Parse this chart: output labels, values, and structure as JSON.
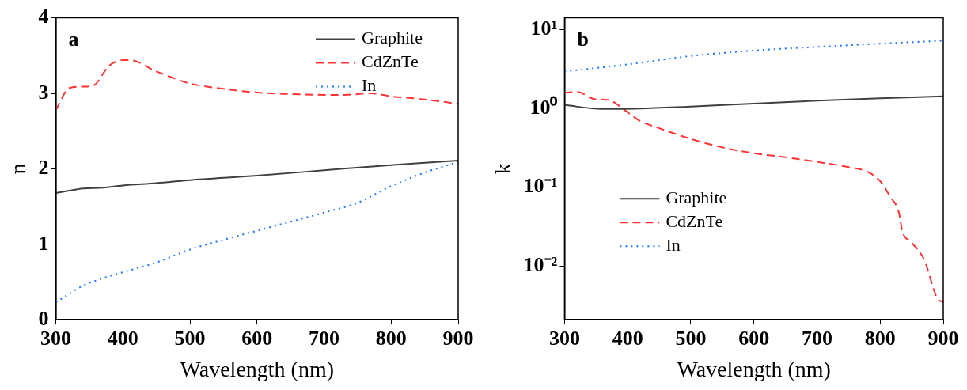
{
  "chart_data": [
    {
      "type": "line",
      "xlabel": "Wavelength (nm)",
      "ylabel": "n",
      "annotations": [
        "a"
      ],
      "xlim": [
        300,
        900
      ],
      "xticks": [
        300,
        400,
        500,
        600,
        700,
        800,
        900
      ],
      "ylim": [
        0,
        4
      ],
      "yticks": [
        0,
        1,
        2,
        3,
        4
      ],
      "legend": "top right",
      "grid": false,
      "series": [
        {
          "name": "Graphite",
          "color": "#404040",
          "line_style": "solid",
          "x": [
            300,
            320,
            340,
            370,
            400,
            450,
            500,
            600,
            700,
            800,
            900
          ],
          "values": [
            1.68,
            1.71,
            1.74,
            1.75,
            1.78,
            1.81,
            1.85,
            1.91,
            1.98,
            2.05,
            2.11
          ]
        },
        {
          "name": "CdZnTe",
          "color": "#ff3333",
          "line_style": "dashed",
          "x": [
            300,
            320,
            340,
            355,
            380,
            400,
            410,
            450,
            470,
            500,
            550,
            600,
            650,
            700,
            730,
            770,
            800,
            850,
            900
          ],
          "values": [
            2.78,
            3.07,
            3.09,
            3.1,
            3.37,
            3.44,
            3.44,
            3.29,
            3.22,
            3.13,
            3.06,
            3.01,
            2.99,
            2.98,
            2.98,
            3.0,
            2.96,
            2.92,
            2.86
          ]
        },
        {
          "name": "In",
          "color": "#1a75ff",
          "line_style": "dotted",
          "x": [
            300,
            340,
            370,
            400,
            450,
            500,
            550,
            600,
            650,
            700,
            750,
            800,
            850,
            900
          ],
          "values": [
            0.23,
            0.45,
            0.55,
            0.63,
            0.76,
            0.93,
            1.06,
            1.18,
            1.3,
            1.42,
            1.55,
            1.77,
            1.95,
            2.09
          ]
        }
      ]
    },
    {
      "type": "line",
      "xlabel": "Wavelength (nm)",
      "ylabel": "k",
      "annotations": [
        "b"
      ],
      "log": "y",
      "xlim": [
        300,
        900
      ],
      "xticks": [
        300,
        400,
        500,
        600,
        700,
        800,
        900
      ],
      "ylim": [
        0.0021,
        14
      ],
      "yticks": [
        {
          "value": 0.01,
          "label": "10⁻²"
        },
        {
          "value": 0.1,
          "label": "10⁻¹"
        },
        {
          "value": 1,
          "label": "10⁰"
        },
        {
          "value": 10,
          "label": "10¹"
        }
      ],
      "legend": "left",
      "grid": false,
      "series": [
        {
          "name": "Graphite",
          "color": "#404040",
          "line_style": "solid",
          "x": [
            300,
            360,
            430,
            500,
            600,
            700,
            800,
            900
          ],
          "values": [
            1.1,
            0.98,
            1.0,
            1.05,
            1.15,
            1.25,
            1.34,
            1.42
          ]
        },
        {
          "name": "CdZnTe",
          "color": "#ff3333",
          "line_style": "dashed",
          "x": [
            300,
            320,
            350,
            370,
            385,
            400,
            420,
            450,
            500,
            550,
            600,
            650,
            700,
            750,
            780,
            800,
            815,
            830,
            835,
            850,
            870,
            890,
            900
          ],
          "values": [
            1.58,
            1.61,
            1.3,
            1.28,
            1.1,
            0.89,
            0.69,
            0.56,
            0.41,
            0.32,
            0.27,
            0.24,
            0.21,
            0.18,
            0.157,
            0.12,
            0.078,
            0.047,
            0.028,
            0.02,
            0.012,
            0.004,
            0.0035
          ]
        },
        {
          "name": "In",
          "color": "#1a75ff",
          "line_style": "dotted",
          "x": [
            300,
            400,
            500,
            600,
            700,
            800,
            900
          ],
          "values": [
            2.93,
            3.6,
            4.6,
            5.4,
            6.0,
            6.6,
            7.2
          ]
        }
      ]
    }
  ]
}
